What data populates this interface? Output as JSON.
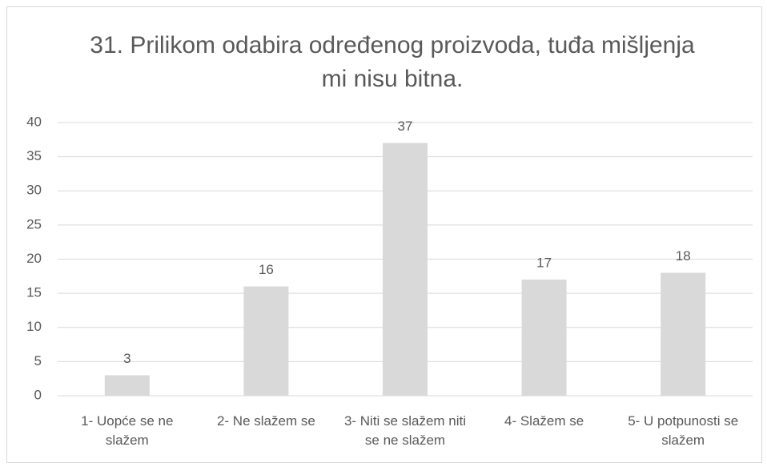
{
  "chart_data": {
    "type": "bar",
    "title": "31. Prilikom odabira određenog proizvoda, tuđa mišljenja mi nisu bitna.",
    "categories": [
      "1- Uopće se ne slažem",
      "2- Ne slažem se",
      "3- Niti se slažem niti se ne slažem",
      "4- Slažem se",
      "5- U potpunosti se slažem"
    ],
    "values": [
      3,
      16,
      37,
      17,
      18
    ],
    "color": "#d9d9d9",
    "ylim": [
      0,
      40
    ],
    "yticks": [
      0,
      5,
      10,
      15,
      20,
      25,
      30,
      35,
      40
    ],
    "grid": true
  }
}
